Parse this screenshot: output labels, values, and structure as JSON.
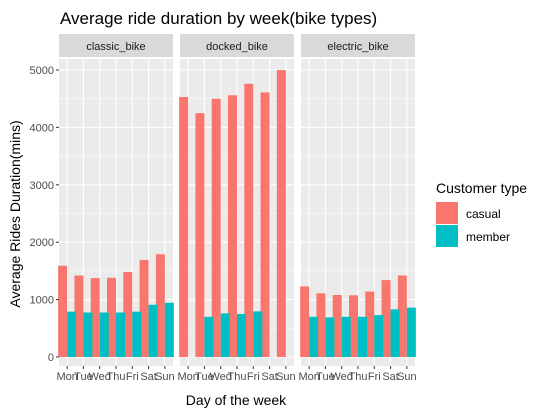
{
  "chart_data": {
    "type": "bar",
    "title": "Average ride duration by week(bike types)",
    "xlabel": "Day of the week",
    "ylabel": "Average Rides Duration(mins)",
    "ylim": [
      0,
      5500
    ],
    "yticks": [
      0,
      1000,
      2000,
      3000,
      4000,
      5000
    ],
    "categories": [
      "Mon",
      "Tue",
      "Wed",
      "Thu",
      "Fri",
      "Sat",
      "Sun"
    ],
    "grid": true,
    "legend_position": "right",
    "legend": {
      "title": "Customer type",
      "entries": [
        {
          "name": "casual",
          "color": "#F8766D"
        },
        {
          "name": "member",
          "color": "#00BFC4"
        }
      ]
    },
    "facets": [
      {
        "strip": "classic_bike",
        "series": [
          {
            "name": "casual",
            "values": [
              1590,
              1420,
              1375,
              1380,
              1480,
              1690,
              1790
            ]
          },
          {
            "name": "member",
            "values": [
              790,
              775,
              775,
              775,
              790,
              910,
              945
            ]
          }
        ]
      },
      {
        "strip": "docked_bike",
        "series": [
          {
            "name": "casual",
            "values": [
              4530,
              4250,
              4500,
              4560,
              4760,
              4610,
              5000
            ]
          },
          {
            "name": "member",
            "values": [
              null,
              700,
              760,
              750,
              795,
              null,
              null
            ]
          }
        ]
      },
      {
        "strip": "electric_bike",
        "series": [
          {
            "name": "casual",
            "values": [
              1230,
              1110,
              1080,
              1075,
              1140,
              1340,
              1420
            ]
          },
          {
            "name": "member",
            "values": [
              700,
              690,
              700,
              700,
              730,
              830,
              860
            ]
          }
        ]
      }
    ]
  },
  "colors": {
    "panel_bg": "#EBEBEB",
    "grid": "#FFFFFF",
    "strip_bg": "#D9D9D9"
  }
}
